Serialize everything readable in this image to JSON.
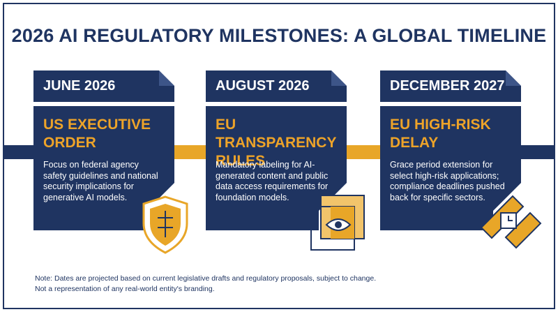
{
  "title": "2026 AI REGULATORY MILESTONES: A GLOBAL TIMELINE",
  "milestones": [
    {
      "date": "JUNE 2026",
      "heading": "US EXECUTIVE ORDER",
      "description": "Focus on federal agency safety guidelines and national security implications for generative AI models."
    },
    {
      "date": "AUGUST 2026",
      "heading": "EU TRANSPARENCY RULES",
      "description": "Mandatory labeling for AI-generated content and public data access requirements for foundation models."
    },
    {
      "date": "DECEMBER 2027",
      "heading": "EU HIGH-RISK DELAY",
      "description": "Grace period extension for select high-risk applications; compliance deadlines pushed back for specific sectors."
    }
  ],
  "notes": [
    "Note: Dates are projected based on current legislative drafts and regulatory proposals, subject to change.",
    "Not a representation of any real-world entity's branding."
  ]
}
